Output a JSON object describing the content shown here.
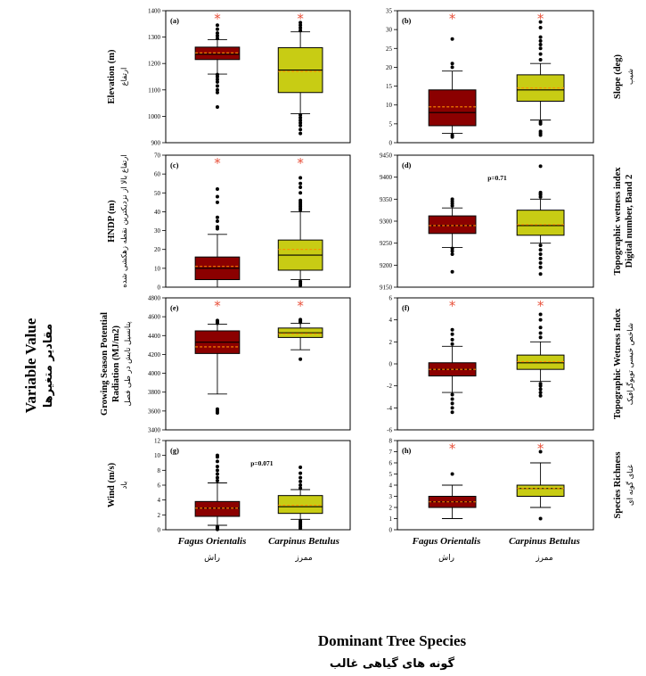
{
  "colors": {
    "fagus": "#8b0000",
    "carpinus": "#c8cc14",
    "mean": "#ff8c00",
    "star": "#e8503a"
  },
  "axis_titles": {
    "y_main": "Variable Value",
    "y_main_fa": "مقادیر متغیرها",
    "x_main": "Dominant Tree Species",
    "x_main_fa": "گونه های گیاهی غالب"
  },
  "categories": [
    {
      "name": "Fagus Orientalis",
      "name_fa": "راش"
    },
    {
      "name": "Carpinus Betulus",
      "name_fa": "ممرز"
    }
  ],
  "chart_data": [
    {
      "type": "box",
      "panel": "(a)",
      "ylabel": "Elevation (m)",
      "ylabel_fa": "ارتفاع",
      "ylabel_side": "left",
      "ylim": [
        900,
        1400
      ],
      "yticks": [
        900,
        1000,
        1100,
        1200,
        1300,
        1400
      ],
      "annotation": "",
      "series": [
        {
          "category": "Fagus Orientalis",
          "lower_whisker": 1160,
          "q1": 1215,
          "median": 1235,
          "mean": 1240,
          "q3": 1262,
          "upper_whisker": 1290,
          "star": true,
          "outliers": [
            1295,
            1305,
            1315,
            1330,
            1345,
            1158,
            1150,
            1140,
            1130,
            1115,
            1100,
            1090,
            1035
          ]
        },
        {
          "category": "Carpinus Betulus",
          "lower_whisker": 1010,
          "q1": 1090,
          "median": 1175,
          "mean": 1170,
          "q3": 1260,
          "upper_whisker": 1320,
          "star": true,
          "outliers": [
            1325,
            1335,
            1345,
            1355,
            1005,
            995,
            985,
            975,
            965,
            950,
            935
          ]
        }
      ]
    },
    {
      "type": "box",
      "panel": "(b)",
      "ylabel": "Slope (deg)",
      "ylabel_fa": "شیب",
      "ylabel_side": "right",
      "ylim": [
        0,
        35
      ],
      "yticks": [
        0,
        5,
        10,
        15,
        20,
        25,
        30,
        35
      ],
      "annotation": "",
      "series": [
        {
          "category": "Fagus Orientalis",
          "lower_whisker": 2.5,
          "q1": 4.5,
          "median": 8,
          "mean": 9.5,
          "q3": 14,
          "upper_whisker": 19,
          "star": true,
          "outliers": [
            20,
            21,
            27.5,
            2,
            1.5
          ]
        },
        {
          "category": "Carpinus Betulus",
          "lower_whisker": 6,
          "q1": 11,
          "median": 14,
          "mean": 14.5,
          "q3": 18,
          "upper_whisker": 21,
          "star": true,
          "outliers": [
            22,
            23.5,
            25,
            26,
            27,
            28,
            30.5,
            32,
            5.5,
            5,
            3,
            2.5,
            2
          ]
        }
      ]
    },
    {
      "type": "box",
      "panel": "(c)",
      "ylabel": "HNDP (m)",
      "ylabel_fa": "ارتفاع بالا از نزدیکترین نقطه زهکشی شده",
      "ylabel_side": "left",
      "ylim": [
        0,
        70
      ],
      "yticks": [
        0,
        10,
        20,
        30,
        40,
        50,
        60,
        70
      ],
      "annotation": "",
      "series": [
        {
          "category": "Fagus Orientalis",
          "lower_whisker": 0,
          "q1": 4,
          "median": 10,
          "mean": 11,
          "q3": 16,
          "upper_whisker": 28,
          "star": true,
          "outliers": [
            31,
            32,
            35,
            37,
            45,
            48,
            52
          ]
        },
        {
          "category": "Carpinus Betulus",
          "lower_whisker": 4,
          "q1": 9,
          "median": 17,
          "mean": 20,
          "q3": 25,
          "upper_whisker": 40,
          "star": true,
          "outliers": [
            41,
            42,
            43,
            44,
            45,
            46,
            50,
            53,
            55,
            58,
            3,
            2,
            1
          ]
        }
      ]
    },
    {
      "type": "box",
      "panel": "(d)",
      "ylabel": "Topographic wetness index",
      "ylabel2": "Digital number, Band 2",
      "ylabel_fa": "",
      "ylabel_side": "right",
      "ylim": [
        9150,
        9450
      ],
      "yticks": [
        9150,
        9200,
        9250,
        9300,
        9350,
        9400,
        9450
      ],
      "annotation": "p=0.71",
      "series": [
        {
          "category": "Fagus Orientalis",
          "lower_whisker": 9240,
          "q1": 9272,
          "median": 9290,
          "mean": 9290,
          "q3": 9312,
          "upper_whisker": 9330,
          "star": false,
          "outliers": [
            9335,
            9340,
            9345,
            9350,
            9238,
            9232,
            9225,
            9185
          ]
        },
        {
          "category": "Carpinus Betulus",
          "lower_whisker": 9250,
          "q1": 9268,
          "median": 9290,
          "mean": 9292,
          "q3": 9325,
          "upper_whisker": 9350,
          "star": false,
          "outliers": [
            9355,
            9360,
            9362,
            9365,
            9425,
            9245,
            9235,
            9225,
            9215,
            9205,
            9195,
            9180
          ]
        }
      ]
    },
    {
      "type": "box",
      "panel": "(e)",
      "ylabel": "Growing Season Potential",
      "ylabel2": "Radiation (MJ/m2)",
      "ylabel_fa": "پتانسیل تابش در طی فصل",
      "ylabel_side": "left",
      "ylim": [
        3400,
        4800
      ],
      "yticks": [
        3400,
        3600,
        3800,
        4000,
        4200,
        4400,
        4600,
        4800
      ],
      "annotation": "",
      "series": [
        {
          "category": "Fagus Orientalis",
          "lower_whisker": 3780,
          "q1": 4210,
          "median": 4330,
          "mean": 4280,
          "q3": 4450,
          "upper_whisker": 4520,
          "star": true,
          "outliers": [
            4530,
            4545,
            4560,
            3620,
            3600,
            3580
          ]
        },
        {
          "category": "Carpinus Betulus",
          "lower_whisker": 4250,
          "q1": 4380,
          "median": 4430,
          "mean": 4420,
          "q3": 4480,
          "upper_whisker": 4530,
          "star": true,
          "outliers": [
            4540,
            4550,
            4560,
            4570,
            4150
          ]
        }
      ]
    },
    {
      "type": "box",
      "panel": "(f)",
      "ylabel": "Topographic Wetness Index",
      "ylabel_fa": "شاخص خیسی توپوگرافیک",
      "ylabel_side": "right",
      "ylim": [
        -6,
        6
      ],
      "yticks": [
        -6,
        -4,
        -2,
        0,
        2,
        4,
        6
      ],
      "annotation": "",
      "series": [
        {
          "category": "Fagus Orientalis",
          "lower_whisker": -2.6,
          "q1": -1.1,
          "median": -0.5,
          "mean": -0.5,
          "q3": 0.1,
          "upper_whisker": 1.6,
          "star": true,
          "outliers": [
            1.8,
            2.2,
            2.7,
            3.1,
            -2.8,
            -3.2,
            -3.6,
            -4.0,
            -4.4
          ]
        },
        {
          "category": "Carpinus Betulus",
          "lower_whisker": -1.6,
          "q1": -0.5,
          "median": 0.1,
          "mean": 0.2,
          "q3": 0.8,
          "upper_whisker": 2.0,
          "star": true,
          "outliers": [
            2.4,
            2.8,
            3.3,
            4.0,
            4.5,
            -1.8,
            -2.0,
            -2.3,
            -2.6,
            -2.9
          ]
        }
      ]
    },
    {
      "type": "box",
      "panel": "(g)",
      "ylabel": "Wind (m/s)",
      "ylabel_fa": "باد",
      "ylabel_side": "left",
      "ylim": [
        0,
        12
      ],
      "yticks": [
        0,
        2,
        4,
        6,
        8,
        10,
        12
      ],
      "annotation": "p=0.071",
      "series": [
        {
          "category": "Fagus Orientalis",
          "lower_whisker": 0.6,
          "q1": 1.8,
          "median": 2.9,
          "mean": 2.9,
          "q3": 3.8,
          "upper_whisker": 6.3,
          "star": false,
          "outliers": [
            6.6,
            7.0,
            7.5,
            8.0,
            8.5,
            9.2,
            9.8,
            10.0,
            0.4,
            0.3,
            0.2,
            0.1,
            0.05
          ]
        },
        {
          "category": "Carpinus Betulus",
          "lower_whisker": 1.4,
          "q1": 2.2,
          "median": 3.1,
          "mean": 3.3,
          "q3": 4.6,
          "upper_whisker": 5.4,
          "star": false,
          "outliers": [
            5.6,
            6.0,
            6.5,
            7.0,
            7.6,
            8.4,
            1.2,
            1.0,
            0.8,
            0.6,
            0.4,
            0.2
          ]
        }
      ]
    },
    {
      "type": "box",
      "panel": "(h)",
      "ylabel": "Species Richness",
      "ylabel_fa": "غنای گونه ای",
      "ylabel_side": "right",
      "ylim": [
        0,
        8
      ],
      "yticks": [
        0,
        1,
        2,
        3,
        4,
        5,
        6,
        7,
        8
      ],
      "annotation": "",
      "series": [
        {
          "category": "Fagus Orientalis",
          "lower_whisker": 1,
          "q1": 2,
          "median": 2.5,
          "mean": 2.5,
          "q3": 3,
          "upper_whisker": 4,
          "star": true,
          "outliers": [
            5
          ]
        },
        {
          "category": "Carpinus Betulus",
          "lower_whisker": 2,
          "q1": 3,
          "median": 3.7,
          "mean": 3.7,
          "q3": 4,
          "upper_whisker": 6,
          "star": true,
          "outliers": [
            7,
            1
          ]
        }
      ]
    }
  ]
}
